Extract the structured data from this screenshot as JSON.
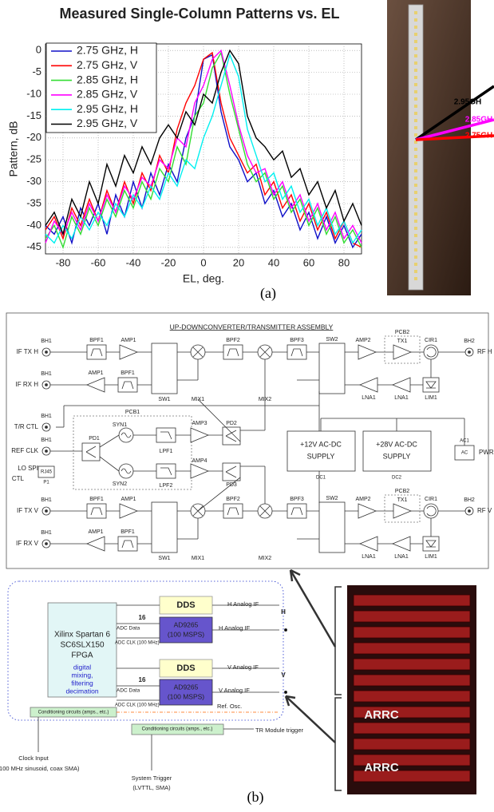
{
  "chart_data": {
    "type": "line",
    "title": "Measured Single-Column Patterns vs. EL",
    "xlabel": "EL, deg.",
    "ylabel": "Pattern, dB",
    "x": [
      -90,
      -85,
      -80,
      -75,
      -70,
      -65,
      -60,
      -55,
      -50,
      -45,
      -40,
      -35,
      -30,
      -25,
      -20,
      -15,
      -10,
      -5,
      0,
      5,
      10,
      15,
      20,
      25,
      30,
      35,
      40,
      45,
      50,
      55,
      60,
      65,
      70,
      75,
      80,
      85,
      90
    ],
    "series": [
      {
        "name": "2.75 GHz, H",
        "color": "#1010c8",
        "values": [
          -40,
          -42,
          -38,
          -44,
          -36,
          -40,
          -35,
          -42,
          -33,
          -38,
          -30,
          -36,
          -28,
          -33,
          -26,
          -30,
          -20,
          -15,
          -2,
          -1,
          -14,
          -22,
          -25,
          -30,
          -28,
          -35,
          -32,
          -38,
          -35,
          -41,
          -37,
          -43,
          -38,
          -44,
          -40,
          -45,
          -42
        ]
      },
      {
        "name": "2.75 GHz, V",
        "color": "#ff0000",
        "values": [
          -41,
          -38,
          -43,
          -36,
          -40,
          -34,
          -39,
          -32,
          -37,
          -30,
          -35,
          -28,
          -32,
          -24,
          -28,
          -18,
          -12,
          -8,
          -2,
          -0.5,
          -12,
          -20,
          -24,
          -28,
          -26,
          -33,
          -30,
          -36,
          -33,
          -39,
          -35,
          -41,
          -37,
          -43,
          -39,
          -44,
          -45
        ]
      },
      {
        "name": "2.85 GHz, H",
        "color": "#33dd33",
        "values": [
          -43,
          -40,
          -45,
          -38,
          -42,
          -36,
          -40,
          -34,
          -38,
          -32,
          -36,
          -30,
          -34,
          -27,
          -30,
          -22,
          -26,
          -15,
          -12,
          -4,
          -0.5,
          -10,
          -18,
          -26,
          -30,
          -28,
          -34,
          -31,
          -37,
          -34,
          -40,
          -36,
          -42,
          -38,
          -44,
          -41,
          -45
        ]
      },
      {
        "name": "2.85 GHz, V",
        "color": "#ff00ff",
        "values": [
          -44,
          -39,
          -42,
          -37,
          -41,
          -35,
          -39,
          -33,
          -37,
          -31,
          -34,
          -29,
          -31,
          -25,
          -27,
          -20,
          -22,
          -12,
          -8,
          -2,
          0,
          -8,
          -17,
          -24,
          -28,
          -27,
          -33,
          -30,
          -36,
          -33,
          -39,
          -35,
          -41,
          -37,
          -43,
          -40,
          -44
        ]
      },
      {
        "name": "2.95 GHz, H",
        "color": "#00f0f0",
        "values": [
          -42,
          -44,
          -40,
          -43,
          -38,
          -41,
          -37,
          -40,
          -35,
          -38,
          -33,
          -36,
          -31,
          -34,
          -28,
          -31,
          -25,
          -27,
          -20,
          -15,
          -8,
          -1,
          -6,
          -18,
          -24,
          -30,
          -28,
          -34,
          -31,
          -37,
          -34,
          -40,
          -36,
          -42,
          -39,
          -44,
          -41
        ]
      },
      {
        "name": "2.95 GHz, V",
        "color": "#000000",
        "values": [
          -40,
          -37,
          -42,
          -34,
          -38,
          -30,
          -35,
          -26,
          -31,
          -24,
          -28,
          -22,
          -26,
          -20,
          -17,
          -20,
          -14,
          -17,
          -10,
          -12,
          -5,
          0,
          -3,
          -15,
          -20,
          -22,
          -25,
          -23,
          -29,
          -27,
          -33,
          -30,
          -36,
          -32,
          -39,
          -35,
          -40
        ]
      }
    ],
    "xlim": [
      -90,
      90
    ],
    "xticks": [
      -80,
      -60,
      -40,
      -20,
      0,
      20,
      40,
      60,
      80
    ],
    "ylim": [
      -46.5,
      1.5
    ],
    "yticks": [
      0,
      -5,
      -10,
      -15,
      -20,
      -25,
      -30,
      -35,
      -40,
      -45
    ],
    "grid": true,
    "legend": "upper left"
  },
  "photo_a": {
    "labels": [
      "2.95GH",
      "2.85GH",
      "2.75GH"
    ]
  },
  "caption_a": "(a)",
  "converter": {
    "title": "UP-DOWNCONVERTER/TRANSMITTER ASSEMBLY",
    "labels": [
      "BH1",
      "IF TX H",
      "IF RX H",
      "T/R CTL",
      "REF CLK",
      "LO SPI",
      "CTL",
      "IF TX V",
      "IF RX V",
      "BPF1",
      "AMP1",
      "SW1",
      "MIX1",
      "BPF2",
      "MIX2",
      "BPF3",
      "SW2",
      "AMP2",
      "PCB2",
      "TX1",
      "CIR1",
      "BH2",
      "RF H",
      "LNA1",
      "LIM1",
      "PCB1",
      "SYN1",
      "SYN2",
      "PD1",
      "LPF1",
      "LPF2",
      "AMP3",
      "AMP4",
      "PD2",
      "PD3",
      "+12V AC-DC",
      "SUPPLY",
      "+28V AC-DC",
      "DC1",
      "DC2",
      "AC1",
      "AC",
      "PWR",
      "RF V",
      "RJ45",
      "P1"
    ]
  },
  "digital": {
    "fpga": [
      "Xilinx Spartan 6",
      "SC6SLX150",
      "FPGA"
    ],
    "fpga_function": [
      "digital",
      "mixing,",
      "filtering",
      "decimation"
    ],
    "dds": "DDS",
    "adc": [
      "AD9265",
      "(100 MSPS)"
    ],
    "if_labels": [
      "H Analog IF",
      "H Analog IF",
      "V Analog IF",
      "V Analog IF"
    ],
    "bus_width": "16",
    "adc_data": "ADC Data",
    "adc_clk": "ADC CLK (100 MHz)",
    "channels": [
      "H",
      "V"
    ],
    "conditioning": "Conditioning circuits (amps., etc.)",
    "ref_osc": "Ref. Osc.",
    "tr_trigger": "TR Module trigger",
    "clock_input": [
      "Clock Input",
      "(100 MHz sinusoid, coax SMA)"
    ],
    "system_trigger": [
      "System Trigger",
      "(LVTTL, SMA)"
    ]
  },
  "rack": {
    "labels": [
      "ARRC",
      "ARRC"
    ]
  },
  "caption_b": "(b)"
}
